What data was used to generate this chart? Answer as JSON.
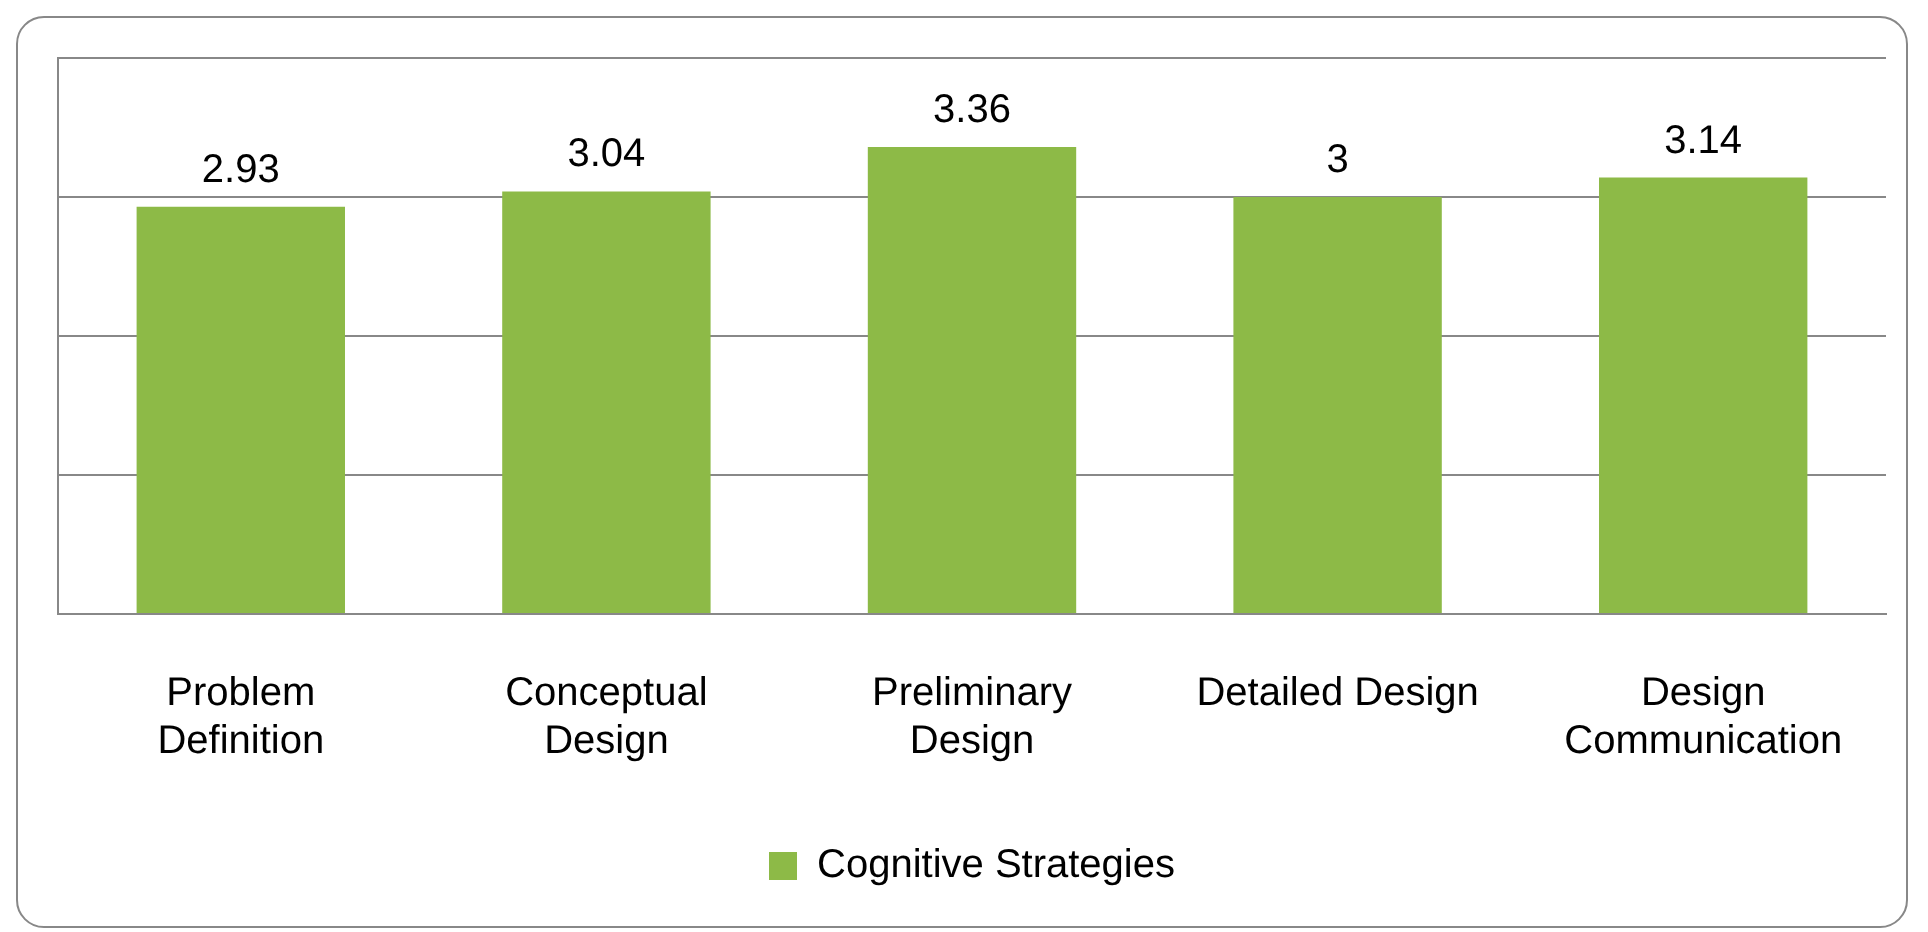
{
  "chart_data": {
    "type": "bar",
    "categories": [
      "Problem Definition",
      "Conceptual Design",
      "Preliminary Design",
      "Detailed Design",
      "Design Communication"
    ],
    "series": [
      {
        "name": "Cognitive Strategies",
        "color": "#8dba47",
        "values": [
          2.93,
          3.04,
          3.36,
          3,
          3.14
        ]
      }
    ],
    "ylim": [
      0,
      4
    ],
    "yticks": [
      {
        "value": 0,
        "label": null
      },
      {
        "value": 1,
        "label": null
      },
      {
        "value": 2,
        "label": null
      },
      {
        "value": 3,
        "label": null
      },
      {
        "value": 4,
        "label": null
      }
    ],
    "tick_labels": "x",
    "grid": "y",
    "legend": "bottom",
    "data_labels": true
  }
}
